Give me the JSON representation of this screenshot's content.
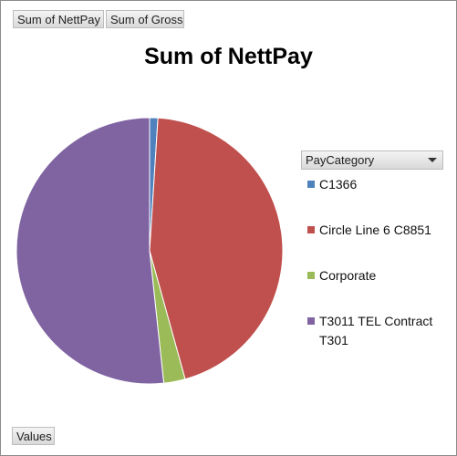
{
  "field_buttons": {
    "nettpay": "Sum of NettPay",
    "gross": "Sum of Gross",
    "values": "Values"
  },
  "legend": {
    "header": "PayCategory"
  },
  "chart_data": {
    "type": "pie",
    "title": "Sum of NettPay",
    "legend_title": "PayCategory",
    "legend_position": "right",
    "categories": [
      "C1366",
      "Circle Line 6 C8851",
      "Corporate",
      "T3011 TEL Contract T301"
    ],
    "values": [
      1.0,
      44.7,
      2.6,
      51.7
    ],
    "colors": [
      "#4f81bd",
      "#c0504d",
      "#9bbb59",
      "#8064a2"
    ]
  }
}
